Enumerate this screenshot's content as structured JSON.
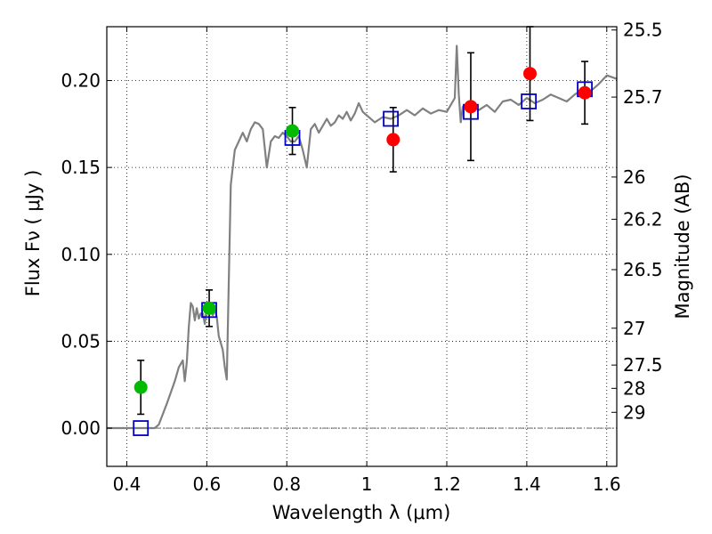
{
  "chart_data": {
    "type": "scatter",
    "xlabel": "Wavelength  λ (μm)",
    "ylabel": "Flux  Fν  ( μJy )",
    "ylabel_right": "Magnitude (AB)",
    "xlim": [
      0.35,
      1.625
    ],
    "ylim": [
      -0.022,
      0.231
    ],
    "grid": true,
    "x_ticks": [
      0.4,
      0.6,
      0.8,
      1.0,
      1.2,
      1.4,
      1.6
    ],
    "x_tick_labels": [
      "0.4",
      "0.6",
      "0.8",
      "1",
      "1.2",
      "1.4",
      "1.6"
    ],
    "y_ticks": [
      0.0,
      0.05,
      0.1,
      0.15,
      0.2
    ],
    "y_tick_labels": [
      "0.00",
      "0.05",
      "0.10",
      "0.15",
      "0.20"
    ],
    "right_ticks": [
      {
        "label": "25.5",
        "flux": 0.2291
      },
      {
        "label": "25.7",
        "flux": 0.1905
      },
      {
        "label": "26",
        "flux": 0.1445
      },
      {
        "label": "26.2",
        "flux": 0.1202
      },
      {
        "label": "26.5",
        "flux": 0.0912
      },
      {
        "label": "27",
        "flux": 0.0575
      },
      {
        "label": "27.5",
        "flux": 0.0363
      },
      {
        "label": "28",
        "flux": 0.0229
      },
      {
        "label": "29",
        "flux": 0.0091
      }
    ],
    "series": [
      {
        "name": "model spectrum",
        "kind": "line",
        "color": "#808080",
        "x": [
          0.35,
          0.47,
          0.48,
          0.5,
          0.52,
          0.53,
          0.54,
          0.545,
          0.55,
          0.555,
          0.56,
          0.565,
          0.57,
          0.575,
          0.58,
          0.585,
          0.59,
          0.595,
          0.6,
          0.61,
          0.615,
          0.62,
          0.625,
          0.63,
          0.64,
          0.645,
          0.65,
          0.66,
          0.67,
          0.68,
          0.69,
          0.7,
          0.71,
          0.72,
          0.73,
          0.74,
          0.75,
          0.76,
          0.77,
          0.78,
          0.79,
          0.8,
          0.81,
          0.82,
          0.83,
          0.84,
          0.85,
          0.86,
          0.87,
          0.88,
          0.89,
          0.9,
          0.91,
          0.92,
          0.93,
          0.94,
          0.95,
          0.96,
          0.97,
          0.98,
          0.99,
          1.0,
          1.02,
          1.04,
          1.06,
          1.08,
          1.1,
          1.12,
          1.14,
          1.16,
          1.18,
          1.2,
          1.22,
          1.225,
          1.23,
          1.235,
          1.24,
          1.26,
          1.28,
          1.3,
          1.32,
          1.34,
          1.36,
          1.38,
          1.4,
          1.42,
          1.44,
          1.46,
          1.48,
          1.5,
          1.52,
          1.54,
          1.56,
          1.58,
          1.6,
          1.625
        ],
        "y": [
          0.0,
          0.0,
          0.002,
          0.014,
          0.027,
          0.035,
          0.039,
          0.027,
          0.038,
          0.058,
          0.072,
          0.07,
          0.062,
          0.069,
          0.063,
          0.066,
          0.066,
          0.06,
          0.07,
          0.068,
          0.065,
          0.068,
          0.064,
          0.053,
          0.045,
          0.035,
          0.028,
          0.14,
          0.16,
          0.165,
          0.17,
          0.165,
          0.172,
          0.176,
          0.175,
          0.172,
          0.15,
          0.165,
          0.168,
          0.167,
          0.17,
          0.168,
          0.165,
          0.165,
          0.168,
          0.16,
          0.15,
          0.172,
          0.175,
          0.17,
          0.174,
          0.178,
          0.174,
          0.176,
          0.18,
          0.178,
          0.182,
          0.177,
          0.181,
          0.187,
          0.182,
          0.18,
          0.176,
          0.179,
          0.178,
          0.18,
          0.183,
          0.18,
          0.184,
          0.181,
          0.183,
          0.182,
          0.19,
          0.22,
          0.192,
          0.176,
          0.185,
          0.186,
          0.183,
          0.186,
          0.182,
          0.188,
          0.189,
          0.186,
          0.19,
          0.187,
          0.189,
          0.192,
          0.19,
          0.188,
          0.192,
          0.195,
          0.194,
          0.198,
          0.203,
          0.201
        ]
      },
      {
        "name": "model photometry",
        "kind": "open-square",
        "color": "#0000cc",
        "x": [
          0.435,
          0.606,
          0.814,
          1.06,
          1.26,
          1.405,
          1.545
        ],
        "y": [
          0.0,
          0.068,
          0.167,
          0.178,
          0.182,
          0.188,
          0.195
        ]
      },
      {
        "name": "observed (green)",
        "kind": "filled-circle",
        "color": "#00bb00",
        "x": [
          0.435,
          0.606,
          0.814
        ],
        "y": [
          0.0235,
          0.069,
          0.171
        ],
        "yerr": [
          0.0155,
          0.0105,
          0.0135
        ]
      },
      {
        "name": "observed (red)",
        "kind": "filled-circle",
        "color": "#ff0000",
        "x": [
          1.066,
          1.26,
          1.408,
          1.545
        ],
        "y": [
          0.166,
          0.185,
          0.204,
          0.193
        ],
        "yerr": [
          0.0185,
          0.031,
          0.027,
          0.018
        ]
      }
    ]
  }
}
